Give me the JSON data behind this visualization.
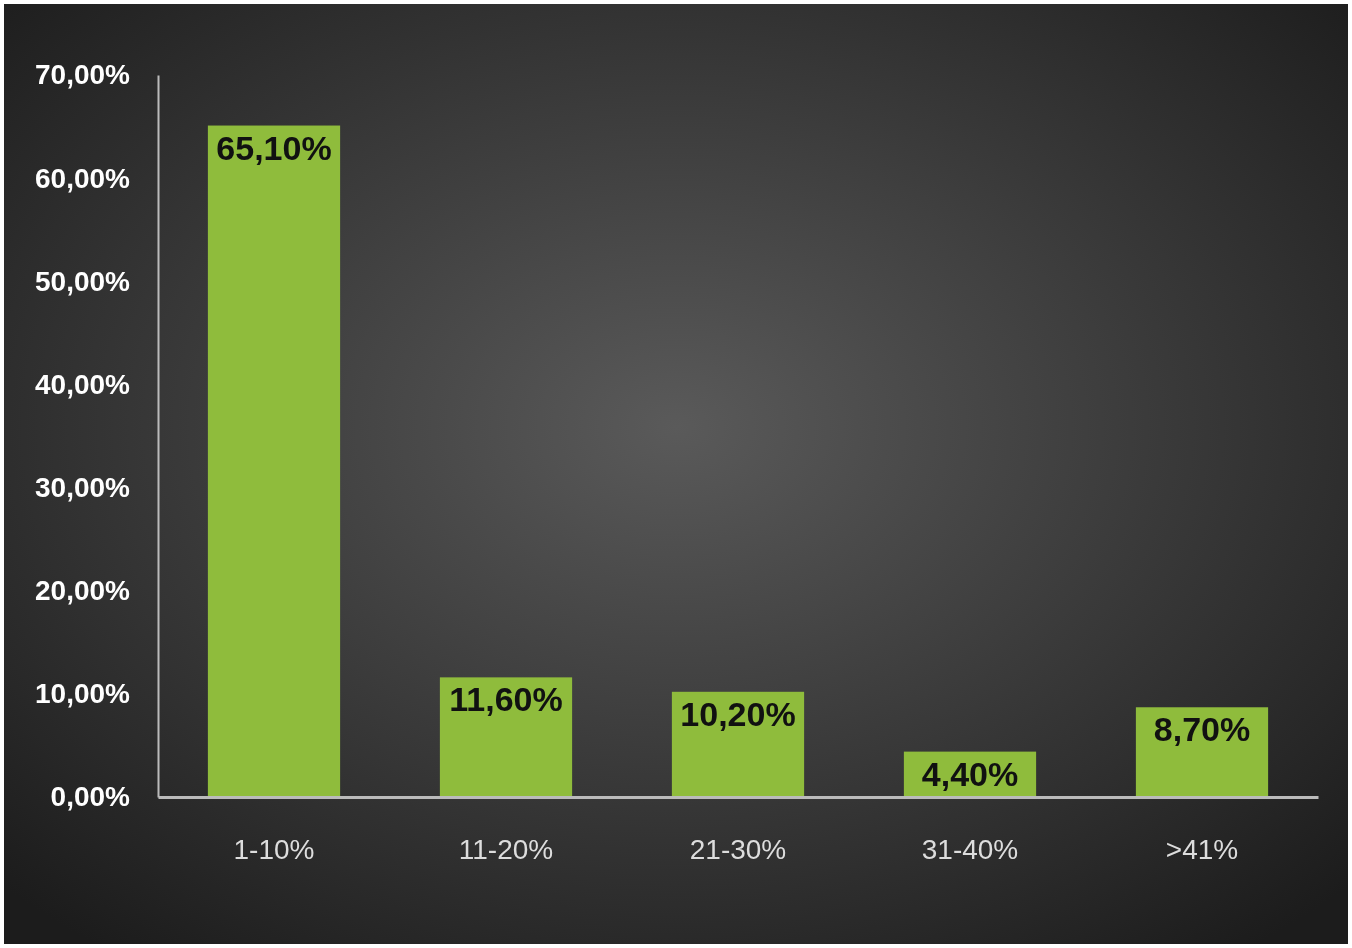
{
  "chart_data": {
    "type": "bar",
    "categories": [
      "1-10%",
      "11-20%",
      "21-30%",
      "31-40%",
      ">41%"
    ],
    "values": [
      65.1,
      11.6,
      10.2,
      4.4,
      8.7
    ],
    "value_labels": [
      "65,10%",
      "11,60%",
      "10,20%",
      "4,40%",
      "8,70%"
    ],
    "color": "#8fbc3c",
    "ylim": [
      0,
      70
    ],
    "yticks": [
      {
        "value": 0,
        "label": "0,00%"
      },
      {
        "value": 10,
        "label": "10,00%"
      },
      {
        "value": 20,
        "label": "20,00%"
      },
      {
        "value": 30,
        "label": "30,00%"
      },
      {
        "value": 40,
        "label": "40,00%"
      },
      {
        "value": 50,
        "label": "50,00%"
      },
      {
        "value": 60,
        "label": "60,00%"
      },
      {
        "value": 70,
        "label": "70,00%"
      }
    ],
    "grid": false
  }
}
